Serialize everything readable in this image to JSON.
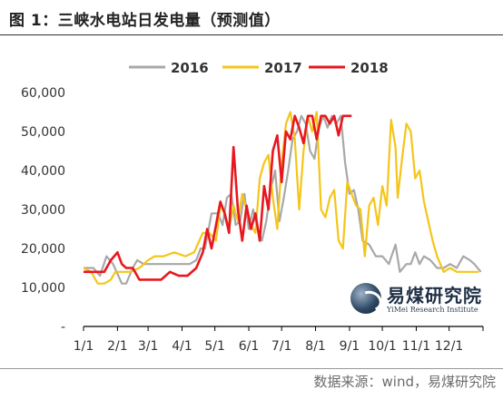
{
  "header": {
    "title": "图 1：三峡水电站日发电量（预测值）"
  },
  "footer": {
    "source": "数据来源：wind，易煤研究院"
  },
  "logo": {
    "name_cn": "易煤研究院",
    "name_en": "YiMei Research Institute"
  },
  "colors": {
    "2016": "#a8a8a8",
    "2017": "#f5c518",
    "2018": "#e8171f",
    "axis": "#000000"
  },
  "chart_data": {
    "type": "line",
    "title": "",
    "xlabel": "",
    "ylabel": "",
    "ylim": [
      0,
      60000
    ],
    "yticks": [
      0,
      10000,
      20000,
      30000,
      40000,
      50000,
      60000
    ],
    "ytick_labels": [
      "-",
      "10,000",
      "20,000",
      "30,000",
      "40,000",
      "50,000",
      "60,000"
    ],
    "x_unit": "day of year",
    "xlim": [
      1,
      366
    ],
    "xticks": [
      1,
      32,
      60,
      91,
      121,
      152,
      182,
      213,
      244,
      274,
      305,
      335
    ],
    "xtick_labels": [
      "1/1",
      "2/1",
      "3/1",
      "4/1",
      "5/1",
      "6/1",
      "7/1",
      "8/1",
      "9/1",
      "10/1",
      "11/1",
      "12/1"
    ],
    "legend": {
      "position": "top-center"
    },
    "grid": false,
    "series": [
      {
        "name": "2016",
        "x": [
          1,
          10,
          16,
          22,
          28,
          36,
          40,
          46,
          50,
          56,
          62,
          68,
          74,
          80,
          86,
          92,
          98,
          104,
          108,
          112,
          118,
          124,
          128,
          132,
          136,
          140,
          144,
          148,
          152,
          156,
          160,
          164,
          168,
          172,
          176,
          180,
          184,
          188,
          192,
          196,
          200,
          204,
          208,
          212,
          216,
          220,
          224,
          228,
          232,
          236,
          240,
          244,
          248,
          252,
          256,
          262,
          268,
          274,
          280,
          286,
          290,
          296,
          300,
          304,
          308,
          312,
          318,
          324,
          330,
          336,
          342,
          348,
          354,
          358,
          364
        ],
        "y": [
          15000,
          15000,
          13000,
          18000,
          16000,
          11000,
          11000,
          15000,
          17000,
          16000,
          16000,
          16000,
          16000,
          16000,
          16000,
          16000,
          16000,
          17000,
          20000,
          20000,
          29000,
          29000,
          26000,
          33000,
          34000,
          26000,
          27000,
          34000,
          25000,
          30000,
          25000,
          22000,
          27000,
          35000,
          40000,
          27000,
          33000,
          40000,
          48000,
          50000,
          54000,
          52000,
          45000,
          43000,
          51000,
          54000,
          51000,
          54000,
          52000,
          54000,
          42000,
          34000,
          35000,
          30000,
          22000,
          21000,
          18000,
          18000,
          16000,
          21000,
          14000,
          16000,
          16000,
          19000,
          16000,
          18000,
          17000,
          15000,
          15000,
          16000,
          15000,
          18000,
          17000,
          16000,
          14000
        ]
      },
      {
        "name": "2017",
        "x": [
          1,
          8,
          14,
          20,
          26,
          30,
          36,
          44,
          52,
          60,
          66,
          74,
          84,
          94,
          102,
          110,
          116,
          122,
          126,
          130,
          134,
          138,
          142,
          146,
          150,
          154,
          158,
          162,
          166,
          170,
          174,
          178,
          182,
          186,
          190,
          194,
          198,
          202,
          206,
          210,
          214,
          218,
          222,
          226,
          230,
          234,
          238,
          242,
          246,
          250,
          254,
          258,
          262,
          266,
          270,
          274,
          278,
          282,
          286,
          288,
          292,
          296,
          300,
          304,
          308,
          312,
          316,
          320,
          324,
          330,
          336,
          342,
          350,
          356,
          362
        ],
        "y": [
          15000,
          14000,
          11000,
          11000,
          12000,
          14000,
          14000,
          14000,
          15000,
          17000,
          18000,
          18000,
          19000,
          18000,
          19000,
          24000,
          24000,
          22000,
          31000,
          29000,
          25000,
          31000,
          27000,
          34000,
          30000,
          26000,
          24000,
          38000,
          42000,
          44000,
          33000,
          25000,
          42000,
          52000,
          55000,
          48000,
          30000,
          45000,
          54000,
          50000,
          55000,
          30000,
          28000,
          33000,
          35000,
          22000,
          20000,
          37000,
          34000,
          31000,
          30000,
          18000,
          31000,
          33000,
          26000,
          36000,
          31000,
          53000,
          46000,
          33000,
          43000,
          52000,
          50000,
          38000,
          40000,
          32000,
          27000,
          22000,
          18000,
          14000,
          15000,
          14000,
          14000,
          14000,
          14000
        ]
      },
      {
        "name": "2018",
        "x": [
          1,
          8,
          14,
          20,
          26,
          32,
          36,
          40,
          46,
          52,
          60,
          66,
          72,
          80,
          88,
          96,
          104,
          110,
          114,
          118,
          122,
          126,
          130,
          134,
          138,
          142,
          146,
          150,
          154,
          158,
          162,
          166,
          170,
          174,
          178,
          182,
          186,
          190,
          194,
          198,
          202,
          206,
          210,
          214,
          218,
          222,
          226,
          230,
          234,
          238,
          242,
          246
        ],
        "y": [
          14000,
          14000,
          14000,
          14000,
          17000,
          19000,
          16000,
          15000,
          15000,
          12000,
          12000,
          12000,
          12000,
          14000,
          13000,
          13000,
          15000,
          19000,
          25000,
          20000,
          26000,
          32000,
          29000,
          24000,
          46000,
          30000,
          22000,
          31000,
          25000,
          29000,
          22000,
          36000,
          30000,
          45000,
          49000,
          37000,
          50000,
          48000,
          54000,
          51000,
          47000,
          54000,
          54000,
          48000,
          54000,
          54000,
          52000,
          54000,
          49000,
          54000,
          54000,
          54000
        ]
      }
    ]
  }
}
